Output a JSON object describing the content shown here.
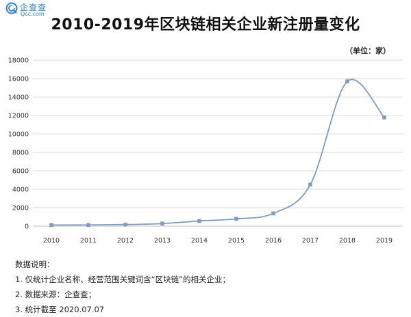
{
  "logo": {
    "brand": "企查查",
    "brand_sub": "Qcc.com"
  },
  "chart_data": {
    "type": "line",
    "title": "2010-2019年区块链相关企业新注册量变化",
    "unit_label": "（单位：家）",
    "categories": [
      "2010",
      "2011",
      "2012",
      "2013",
      "2014",
      "2015",
      "2016",
      "2017",
      "2018",
      "2019"
    ],
    "series": [
      {
        "values": [
          120,
          130,
          170,
          280,
          560,
          790,
          1380,
          4500,
          15700,
          11780
        ],
        "color": "#7f9cbe"
      }
    ],
    "ylim": [
      0,
      18000
    ],
    "yticks": [
      0,
      2000,
      4000,
      6000,
      8000,
      10000,
      12000,
      14000,
      16000,
      18000
    ],
    "grid": true,
    "legend": "none"
  },
  "notes": {
    "heading": "数据说明：",
    "lines": [
      "1. 仅统计企业名称、经营范围关键词含“区块链”的相关企业；",
      "2. 数据来源：企查查；",
      "3. 统计截至 2020.07.07"
    ]
  }
}
